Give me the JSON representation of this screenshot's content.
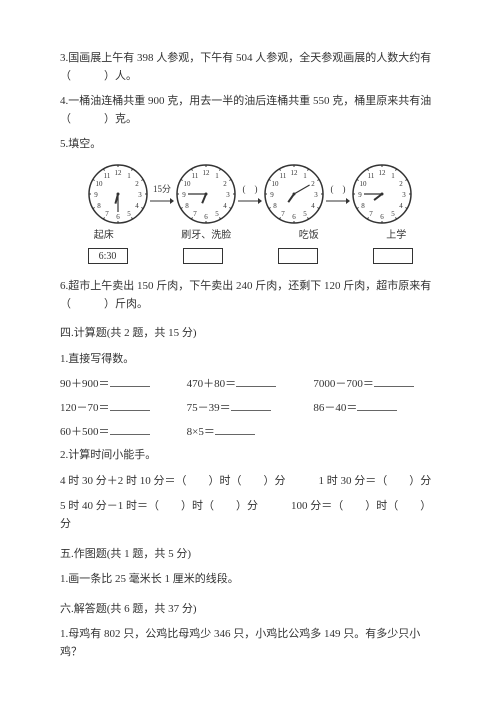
{
  "q3": "3.国画展上午有 398 人参观，下午有 504 人参观，全天参观画展的人数大约有（　　　）人。",
  "q4": "4.一桶油连桶共重 900 克，用去一半的油后连桶共重 550 克，桶里原来共有油（　　　）克。",
  "q5": "5.填空。",
  "clock_arrow1": "15分",
  "clock_paren": "(　)",
  "label1": "起床",
  "label2": "刷牙、洗脸",
  "label3": "吃饭",
  "label4": "上学",
  "box1": "6:30",
  "q6": "6.超市上午卖出 150 斤肉，下午卖出 240 斤肉，还剩下 120 斤肉，超市原来有（　　　）斤肉。",
  "sec4": "四.计算题(共 2 题，共 15 分)",
  "s4q1": "1.直接写得数。",
  "c1a": "90＋900＝",
  "c1b": "470＋80＝",
  "c1c": "7000－700＝",
  "c2a": "120－70＝",
  "c2b": "75－39＝",
  "c2c": "86－40＝",
  "c3a": "60＋500＝",
  "c3b": "8×5＝",
  "s4q2": "2.计算时间小能手。",
  "t1": "4 时 30 分＋2 时 10 分＝（　　）时（　　）分　　　1 时 30 分＝（　　）分",
  "t2": "5 时 40 分－1 时＝（　　）时（　　）分　　　100 分＝（　　）时（　　）分",
  "sec5": "五.作图题(共 1 题，共 5 分)",
  "s5q1": "1.画一条比 25 毫米长 1 厘米的线段。",
  "sec6": "六.解答题(共 6 题，共 37 分)",
  "s6q1": "1.母鸡有 802 只，公鸡比母鸡少 346 只，小鸡比公鸡多 149 只。有多少只小鸡？",
  "clocks": [
    {
      "hour": 6,
      "min": 30
    },
    {
      "hour": 6,
      "min": 45
    },
    {
      "hour": 7,
      "min": 10
    },
    {
      "hour": 7,
      "min": 45
    }
  ],
  "clock_style": {
    "face": "#fff",
    "stroke": "#333",
    "size": 60
  }
}
